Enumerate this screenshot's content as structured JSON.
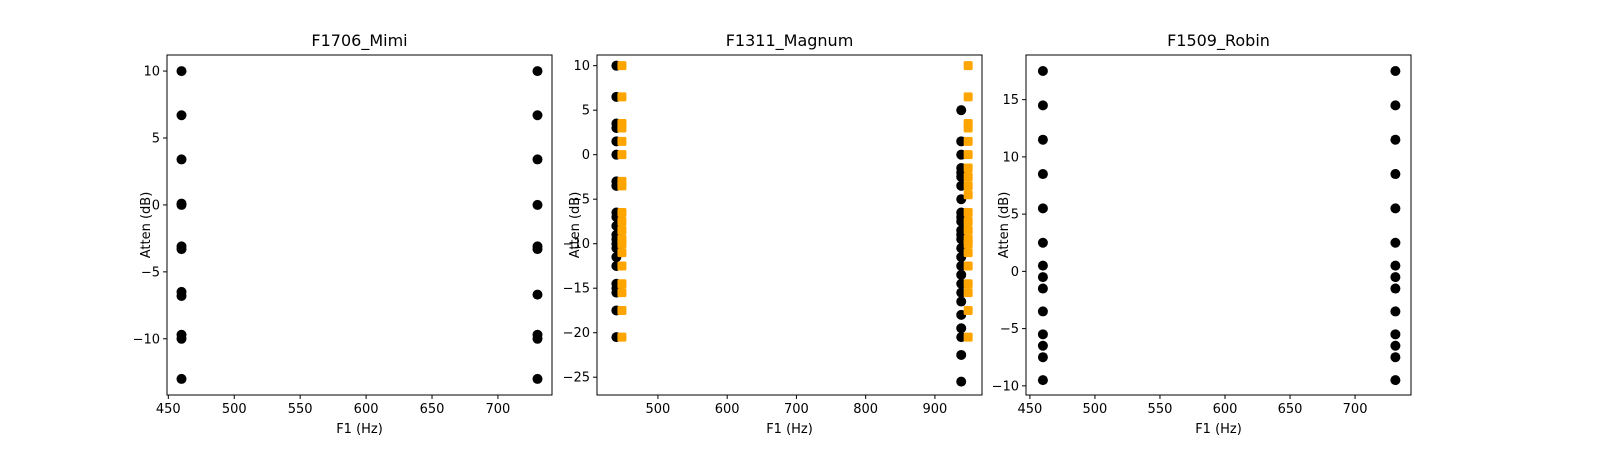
{
  "chart_data": [
    {
      "type": "scatter",
      "title": "F1706_Mimi",
      "xlabel": "F1 (Hz)",
      "ylabel": "Atten (dB)",
      "xlim": [
        449,
        741
      ],
      "ylim": [
        -14.2,
        11.2
      ],
      "xticks": [
        450,
        500,
        550,
        600,
        650,
        700
      ],
      "yticks": [
        -10,
        -5,
        0,
        5,
        10
      ],
      "grid": false,
      "series": [
        {
          "color": "#000000",
          "marker": "circle",
          "points": [
            [
              460,
              10
            ],
            [
              460,
              6.7
            ],
            [
              460,
              3.4
            ],
            [
              460,
              0.1
            ],
            [
              460,
              0
            ],
            [
              460,
              -3.1
            ],
            [
              460,
              -3.3
            ],
            [
              460,
              -6.5
            ],
            [
              460,
              -6.8
            ],
            [
              460,
              -9.7
            ],
            [
              460,
              -10
            ],
            [
              460,
              -13
            ],
            [
              730,
              10
            ],
            [
              730,
              6.7
            ],
            [
              730,
              3.4
            ],
            [
              730,
              0
            ],
            [
              730,
              -3.1
            ],
            [
              730,
              -3.3
            ],
            [
              730,
              -6.7
            ],
            [
              730,
              -9.7
            ],
            [
              730,
              -10
            ],
            [
              730,
              -13
            ]
          ]
        }
      ]
    },
    {
      "type": "scatter",
      "title": "F1311_Magnum",
      "xlabel": "F1 (Hz)",
      "ylabel": "Atten (dB)",
      "xlim": [
        412,
        968
      ],
      "ylim": [
        -27,
        11.2
      ],
      "xticks": [
        500,
        600,
        700,
        800,
        900
      ],
      "yticks": [
        -25,
        -20,
        -15,
        -10,
        -5,
        0,
        5,
        10
      ],
      "grid": false,
      "series": [
        {
          "color": "#000000",
          "marker": "circle",
          "points": [
            [
              440,
              10
            ],
            [
              440,
              6.5
            ],
            [
              440,
              3.5
            ],
            [
              440,
              3
            ],
            [
              440,
              1.5
            ],
            [
              440,
              0
            ],
            [
              440,
              -3
            ],
            [
              440,
              -3.5
            ],
            [
              440,
              -6.5
            ],
            [
              440,
              -7
            ],
            [
              440,
              -8
            ],
            [
              440,
              -9
            ],
            [
              440,
              -9.5
            ],
            [
              440,
              -10
            ],
            [
              440,
              -10.5
            ],
            [
              440,
              -11.5
            ],
            [
              440,
              -12.5
            ],
            [
              440,
              -14.5
            ],
            [
              440,
              -15
            ],
            [
              440,
              -15.5
            ],
            [
              440,
              -17.5
            ],
            [
              440,
              -20.5
            ],
            [
              938,
              5
            ],
            [
              938,
              1.5
            ],
            [
              938,
              0
            ],
            [
              938,
              -1.5
            ],
            [
              938,
              -2
            ],
            [
              938,
              -2.5
            ],
            [
              938,
              -3.5
            ],
            [
              938,
              -5
            ],
            [
              938,
              -6.5
            ],
            [
              938,
              -7
            ],
            [
              938,
              -7.5
            ],
            [
              938,
              -8.5
            ],
            [
              938,
              -9
            ],
            [
              938,
              -9.5
            ],
            [
              938,
              -10.5
            ],
            [
              938,
              -11.5
            ],
            [
              938,
              -12.5
            ],
            [
              938,
              -13.5
            ],
            [
              938,
              -14.5
            ],
            [
              938,
              -15.5
            ],
            [
              938,
              -16.5
            ],
            [
              938,
              -18
            ],
            [
              938,
              -19.5
            ],
            [
              938,
              -20.5
            ],
            [
              938,
              -22.5
            ],
            [
              938,
              -25.5
            ]
          ]
        },
        {
          "color": "#FFA500",
          "marker": "square",
          "points": [
            [
              448,
              10
            ],
            [
              448,
              6.5
            ],
            [
              448,
              3.5
            ],
            [
              448,
              3
            ],
            [
              448,
              1.5
            ],
            [
              448,
              0
            ],
            [
              448,
              -3
            ],
            [
              448,
              -3.5
            ],
            [
              448,
              -6.5
            ],
            [
              448,
              -7.5
            ],
            [
              448,
              -8.5
            ],
            [
              448,
              -9.5
            ],
            [
              448,
              -10
            ],
            [
              448,
              -11
            ],
            [
              448,
              -12.5
            ],
            [
              448,
              -14.5
            ],
            [
              448,
              -15.5
            ],
            [
              448,
              -17.5
            ],
            [
              448,
              -20.5
            ],
            [
              948,
              10
            ],
            [
              948,
              6.5
            ],
            [
              948,
              3.5
            ],
            [
              948,
              3
            ],
            [
              948,
              1.5
            ],
            [
              948,
              0
            ],
            [
              948,
              -1.5
            ],
            [
              948,
              -2.5
            ],
            [
              948,
              -3.5
            ],
            [
              948,
              -4.5
            ],
            [
              948,
              -6.5
            ],
            [
              948,
              -7.5
            ],
            [
              948,
              -8.5
            ],
            [
              948,
              -9.5
            ],
            [
              948,
              -10
            ],
            [
              948,
              -11
            ],
            [
              948,
              -12.5
            ],
            [
              948,
              -14.5
            ],
            [
              948,
              -15.5
            ],
            [
              948,
              -17.5
            ],
            [
              948,
              -20.5
            ]
          ]
        }
      ]
    },
    {
      "type": "scatter",
      "title": "F1509_Robin",
      "xlabel": "F1 (Hz)",
      "ylabel": "Atten (dB)",
      "xlim": [
        447,
        743
      ],
      "ylim": [
        -10.8,
        18.9
      ],
      "xticks": [
        450,
        500,
        550,
        600,
        650,
        700
      ],
      "yticks": [
        -10,
        -5,
        0,
        5,
        10,
        15
      ],
      "grid": false,
      "series": [
        {
          "color": "#000000",
          "marker": "circle",
          "points": [
            [
              460,
              17.5
            ],
            [
              460,
              14.5
            ],
            [
              460,
              11.5
            ],
            [
              460,
              8.5
            ],
            [
              460,
              5.5
            ],
            [
              460,
              2.5
            ],
            [
              460,
              0.5
            ],
            [
              460,
              -0.5
            ],
            [
              460,
              -1.5
            ],
            [
              460,
              -3.5
            ],
            [
              460,
              -5.5
            ],
            [
              460,
              -6.5
            ],
            [
              460,
              -7.5
            ],
            [
              460,
              -9.5
            ],
            [
              731,
              17.5
            ],
            [
              731,
              14.5
            ],
            [
              731,
              11.5
            ],
            [
              731,
              8.5
            ],
            [
              731,
              5.5
            ],
            [
              731,
              2.5
            ],
            [
              731,
              0.5
            ],
            [
              731,
              -0.5
            ],
            [
              731,
              -1.5
            ],
            [
              731,
              -3.5
            ],
            [
              731,
              -5.5
            ],
            [
              731,
              -6.5
            ],
            [
              731,
              -7.5
            ],
            [
              731,
              -9.5
            ]
          ]
        }
      ]
    }
  ]
}
